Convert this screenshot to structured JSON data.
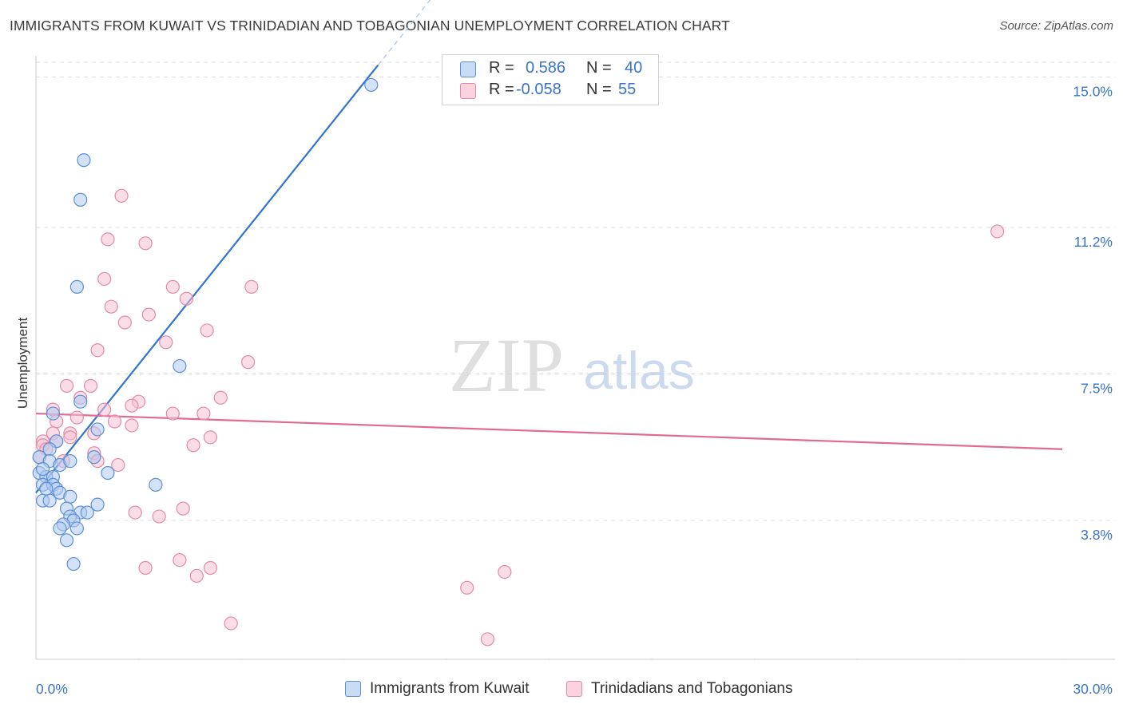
{
  "title": "IMMIGRANTS FROM KUWAIT VS TRINIDADIAN AND TOBAGONIAN UNEMPLOYMENT CORRELATION CHART",
  "source": "Source: ZipAtlas.com",
  "watermark": {
    "zip": "ZIP",
    "atlas": "atlas"
  },
  "colors": {
    "blue_fill": "#aecbf0",
    "blue_stroke": "#5b8fd6",
    "blue_line": "#2f74d0",
    "pink_fill": "#f6c1d1",
    "pink_stroke": "#e48aa8",
    "pink_line": "#e06a92",
    "value_text": "#3a74c8",
    "grid": "#dddddd"
  },
  "legend": {
    "rows": [
      {
        "r_label": "R =",
        "r_value": "0.586",
        "n_label": "N =",
        "n_value": "40"
      },
      {
        "r_label": "R =",
        "r_value": "-0.058",
        "n_label": "N =",
        "n_value": "55"
      }
    ]
  },
  "bottom_legend": [
    {
      "label": "Immigrants from Kuwait"
    },
    {
      "label": "Trinidadians and Tobagonians"
    }
  ],
  "chart_data": {
    "type": "scatter",
    "title": "IMMIGRANTS FROM KUWAIT VS TRINIDADIAN AND TOBAGONIAN UNEMPLOYMENT CORRELATION CHART",
    "xlabel": "",
    "ylabel": "Unemployment",
    "xlim": [
      0,
      30
    ],
    "ylim": [
      0,
      15.5
    ],
    "x_tick_labels": [
      "0.0%",
      "30.0%"
    ],
    "y_ticks": [
      3.8,
      7.5,
      11.2,
      15.0
    ],
    "y_tick_labels": [
      "3.8%",
      "7.5%",
      "11.2%",
      "15.0%"
    ],
    "grid": true,
    "series": [
      {
        "name": "Immigrants from Kuwait",
        "color": "blue",
        "R": 0.586,
        "N": 40,
        "trend": {
          "x0": 0.0,
          "y0": 4.5,
          "x1": 10.0,
          "y1": 15.3,
          "solid_until_x": 10.0
        },
        "points": [
          [
            9.8,
            14.8
          ],
          [
            1.4,
            12.9
          ],
          [
            1.3,
            11.9
          ],
          [
            1.2,
            9.7
          ],
          [
            4.2,
            7.7
          ],
          [
            1.3,
            6.8
          ],
          [
            0.5,
            6.5
          ],
          [
            1.8,
            6.1
          ],
          [
            0.6,
            5.8
          ],
          [
            0.4,
            5.6
          ],
          [
            0.1,
            5.4
          ],
          [
            0.4,
            5.3
          ],
          [
            0.7,
            5.2
          ],
          [
            1.0,
            5.3
          ],
          [
            1.7,
            5.4
          ],
          [
            0.1,
            5.0
          ],
          [
            0.3,
            4.9
          ],
          [
            0.5,
            4.9
          ],
          [
            2.1,
            5.0
          ],
          [
            0.2,
            4.7
          ],
          [
            0.5,
            4.7
          ],
          [
            0.6,
            4.6
          ],
          [
            3.5,
            4.7
          ],
          [
            0.7,
            4.5
          ],
          [
            0.2,
            4.3
          ],
          [
            0.4,
            4.3
          ],
          [
            1.0,
            4.4
          ],
          [
            0.9,
            4.1
          ],
          [
            1.3,
            4.0
          ],
          [
            1.5,
            4.0
          ],
          [
            1.8,
            4.2
          ],
          [
            1.0,
            3.9
          ],
          [
            1.1,
            3.8
          ],
          [
            0.8,
            3.7
          ],
          [
            0.7,
            3.6
          ],
          [
            1.2,
            3.6
          ],
          [
            0.9,
            3.3
          ],
          [
            1.1,
            2.7
          ],
          [
            0.2,
            5.1
          ],
          [
            0.3,
            4.6
          ]
        ]
      },
      {
        "name": "Trinidadians and Tobagonians",
        "color": "pink",
        "R": -0.058,
        "N": 55,
        "trend": {
          "x0": 0.0,
          "y0": 6.5,
          "x1": 30.0,
          "y1": 5.6
        },
        "points": [
          [
            2.5,
            12.0
          ],
          [
            28.1,
            11.1
          ],
          [
            2.1,
            10.9
          ],
          [
            3.2,
            10.8
          ],
          [
            2.0,
            9.9
          ],
          [
            4.0,
            9.7
          ],
          [
            6.3,
            9.7
          ],
          [
            4.4,
            9.4
          ],
          [
            2.2,
            9.2
          ],
          [
            3.3,
            9.0
          ],
          [
            2.6,
            8.8
          ],
          [
            5.0,
            8.6
          ],
          [
            3.8,
            8.3
          ],
          [
            1.8,
            8.1
          ],
          [
            6.2,
            7.8
          ],
          [
            0.9,
            7.2
          ],
          [
            1.6,
            7.2
          ],
          [
            5.4,
            6.9
          ],
          [
            1.3,
            6.9
          ],
          [
            3.0,
            6.8
          ],
          [
            2.8,
            6.7
          ],
          [
            0.5,
            6.6
          ],
          [
            2.0,
            6.6
          ],
          [
            4.0,
            6.5
          ],
          [
            4.9,
            6.5
          ],
          [
            1.2,
            6.4
          ],
          [
            0.6,
            6.3
          ],
          [
            2.3,
            6.3
          ],
          [
            2.8,
            6.2
          ],
          [
            0.5,
            6.0
          ],
          [
            1.0,
            6.0
          ],
          [
            1.7,
            6.0
          ],
          [
            1.0,
            5.9
          ],
          [
            5.1,
            5.9
          ],
          [
            0.2,
            5.8
          ],
          [
            0.6,
            5.8
          ],
          [
            0.2,
            5.7
          ],
          [
            4.6,
            5.7
          ],
          [
            0.3,
            5.6
          ],
          [
            1.7,
            5.5
          ],
          [
            0.1,
            5.4
          ],
          [
            0.8,
            5.3
          ],
          [
            1.8,
            5.3
          ],
          [
            2.4,
            5.2
          ],
          [
            4.3,
            4.1
          ],
          [
            2.9,
            4.0
          ],
          [
            3.6,
            3.9
          ],
          [
            4.2,
            2.8
          ],
          [
            3.2,
            2.6
          ],
          [
            5.1,
            2.6
          ],
          [
            4.7,
            2.4
          ],
          [
            13.7,
            2.5
          ],
          [
            12.6,
            2.1
          ],
          [
            5.7,
            1.2
          ],
          [
            13.2,
            0.8
          ]
        ]
      }
    ]
  }
}
